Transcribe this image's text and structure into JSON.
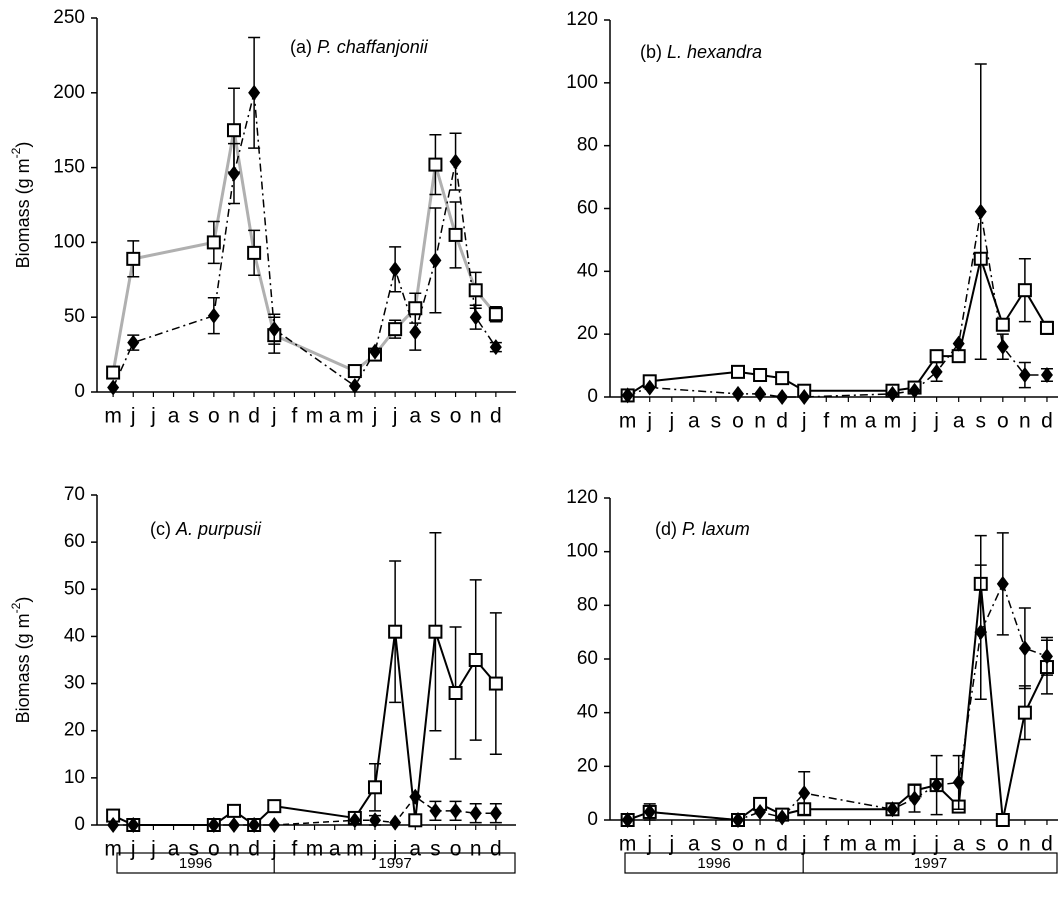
{
  "chart_data": [
    {
      "type": "line",
      "title": [
        "(a) ",
        "P. chaffanjonii"
      ],
      "ylabel": [
        "Biomass  (g m",
        "-2",
        ")"
      ],
      "xlim": [
        -0.8,
        20
      ],
      "ylim": [
        0,
        250
      ],
      "yticks": [
        0,
        50,
        100,
        150,
        200,
        250
      ],
      "xticks": [
        {
          "value": 0,
          "label": "m"
        },
        {
          "value": 1,
          "label": "j"
        },
        {
          "value": 2,
          "label": "j"
        },
        {
          "value": 3,
          "label": "a"
        },
        {
          "value": 4,
          "label": "s"
        },
        {
          "value": 5,
          "label": "o"
        },
        {
          "value": 6,
          "label": "n"
        },
        {
          "value": 7,
          "label": "d"
        },
        {
          "value": 8,
          "label": "j"
        },
        {
          "value": 9,
          "label": "f"
        },
        {
          "value": 10,
          "label": "m"
        },
        {
          "value": 11,
          "label": "a"
        },
        {
          "value": 12,
          "label": "m"
        },
        {
          "value": 13,
          "label": "j"
        },
        {
          "value": 14,
          "label": "j"
        },
        {
          "value": 15,
          "label": "a"
        },
        {
          "value": 16,
          "label": "s"
        },
        {
          "value": 17,
          "label": "o"
        },
        {
          "value": 18,
          "label": "n"
        },
        {
          "value": 19,
          "label": "d"
        }
      ],
      "x": [
        0,
        1,
        5,
        6,
        7,
        8,
        12,
        13,
        14,
        15,
        16,
        17,
        18,
        19
      ],
      "series": [
        {
          "marker": "square",
          "color": "#000000",
          "line_color": "#b0b0b0",
          "line_width": 3,
          "dash": "none",
          "values": [
            13,
            89,
            100,
            175,
            93,
            38,
            14,
            25,
            42,
            56,
            152,
            105,
            68,
            52
          ],
          "errors": [
            null,
            12,
            14,
            28,
            15,
            12,
            null,
            null,
            6,
            10,
            20,
            22,
            12,
            5
          ]
        },
        {
          "marker": "diamond",
          "color": "#000000",
          "line_color": "#000000",
          "line_width": 1.5,
          "dash": "8,4,2,4",
          "values": [
            3,
            33,
            51,
            146,
            200,
            42,
            4,
            27,
            82,
            40,
            88,
            154,
            50,
            30
          ],
          "errors": [
            null,
            5,
            12,
            20,
            37,
            10,
            null,
            null,
            15,
            12,
            35,
            19,
            8,
            3
          ]
        }
      ]
    },
    {
      "type": "line",
      "title": [
        "(b) ",
        "L. hexandra"
      ],
      "xlim": [
        -0.8,
        19.5
      ],
      "ylim": [
        0,
        120
      ],
      "yticks": [
        0,
        20,
        40,
        60,
        80,
        100,
        120
      ],
      "xticks": [
        {
          "value": 0,
          "label": "m"
        },
        {
          "value": 1,
          "label": "j"
        },
        {
          "value": 2,
          "label": "j"
        },
        {
          "value": 3,
          "label": "a"
        },
        {
          "value": 4,
          "label": "s"
        },
        {
          "value": 5,
          "label": "o"
        },
        {
          "value": 6,
          "label": "n"
        },
        {
          "value": 7,
          "label": "d"
        },
        {
          "value": 8,
          "label": "j"
        },
        {
          "value": 9,
          "label": "f"
        },
        {
          "value": 10,
          "label": "m"
        },
        {
          "value": 11,
          "label": "a"
        },
        {
          "value": 12,
          "label": "m"
        },
        {
          "value": 13,
          "label": "j"
        },
        {
          "value": 14,
          "label": "j"
        },
        {
          "value": 15,
          "label": "a"
        },
        {
          "value": 16,
          "label": "s"
        },
        {
          "value": 17,
          "label": "o"
        },
        {
          "value": 18,
          "label": "n"
        },
        {
          "value": 19,
          "label": "d"
        }
      ],
      "x": [
        0,
        1,
        5,
        6,
        7,
        8,
        12,
        13,
        14,
        15,
        16,
        17,
        18,
        19
      ],
      "series": [
        {
          "marker": "square",
          "color": "#000000",
          "line_color": "#000000",
          "line_width": 2,
          "dash": "none",
          "values": [
            0.5,
            5,
            8,
            7,
            6,
            2,
            2,
            3,
            13,
            13,
            44,
            23,
            34,
            22
          ],
          "errors": [
            null,
            null,
            null,
            null,
            null,
            null,
            null,
            null,
            null,
            null,
            null,
            null,
            10,
            2
          ]
        },
        {
          "marker": "diamond",
          "color": "#000000",
          "line_color": "#000000",
          "line_width": 1.5,
          "dash": "8,4,2,4",
          "values": [
            0.5,
            3,
            1,
            1,
            0,
            0,
            1,
            2,
            8,
            17,
            59,
            16,
            7,
            7
          ],
          "errors": [
            null,
            null,
            null,
            null,
            null,
            null,
            null,
            null,
            3,
            null,
            47,
            4,
            4,
            2
          ]
        }
      ]
    },
    {
      "type": "line",
      "title": [
        "(c) ",
        "A. purpusii"
      ],
      "ylabel": [
        "Biomass  (g m",
        "-2",
        ")"
      ],
      "years": [
        "1996",
        "1997"
      ],
      "xlim": [
        -0.8,
        20
      ],
      "ylim": [
        0,
        70
      ],
      "yticks": [
        0,
        10,
        20,
        30,
        40,
        50,
        60,
        70
      ],
      "xticks": [
        {
          "value": 0,
          "label": "m"
        },
        {
          "value": 1,
          "label": "j"
        },
        {
          "value": 2,
          "label": "j"
        },
        {
          "value": 3,
          "label": "a"
        },
        {
          "value": 4,
          "label": "s"
        },
        {
          "value": 5,
          "label": "o"
        },
        {
          "value": 6,
          "label": "n"
        },
        {
          "value": 7,
          "label": "d"
        },
        {
          "value": 8,
          "label": "j"
        },
        {
          "value": 9,
          "label": "f"
        },
        {
          "value": 10,
          "label": "m"
        },
        {
          "value": 11,
          "label": "a"
        },
        {
          "value": 12,
          "label": "m"
        },
        {
          "value": 13,
          "label": "j"
        },
        {
          "value": 14,
          "label": "j"
        },
        {
          "value": 15,
          "label": "a"
        },
        {
          "value": 16,
          "label": "s"
        },
        {
          "value": 17,
          "label": "o"
        },
        {
          "value": 18,
          "label": "n"
        },
        {
          "value": 19,
          "label": "d"
        }
      ],
      "x": [
        0,
        1,
        5,
        6,
        7,
        8,
        12,
        13,
        14,
        15,
        16,
        17,
        18,
        19
      ],
      "series": [
        {
          "marker": "square",
          "color": "#000000",
          "line_color": "#000000",
          "line_width": 2,
          "dash": "none",
          "values": [
            2,
            0,
            0,
            3,
            0,
            4,
            1.5,
            8,
            41,
            1,
            41,
            28,
            35,
            30
          ],
          "errors": [
            null,
            null,
            null,
            null,
            null,
            null,
            null,
            5,
            15,
            null,
            21,
            14,
            17,
            15
          ]
        },
        {
          "marker": "diamond",
          "color": "#000000",
          "line_color": "#000000",
          "line_width": 1.5,
          "dash": "6,4",
          "values": [
            0,
            0,
            0,
            0,
            0,
            0,
            1,
            1,
            0.5,
            6,
            3,
            3,
            2.5,
            2.5
          ],
          "errors": [
            null,
            null,
            null,
            null,
            null,
            null,
            null,
            1,
            null,
            null,
            2,
            2,
            2,
            2
          ]
        }
      ]
    },
    {
      "type": "line",
      "title": [
        "(d) ",
        "P. laxum"
      ],
      "years": [
        "1996",
        "1997"
      ],
      "xlim": [
        -0.8,
        19.5
      ],
      "ylim": [
        0,
        120
      ],
      "yticks": [
        0,
        20,
        40,
        60,
        80,
        100,
        120
      ],
      "xticks": [
        {
          "value": 0,
          "label": "m"
        },
        {
          "value": 1,
          "label": "j"
        },
        {
          "value": 2,
          "label": "j"
        },
        {
          "value": 3,
          "label": "a"
        },
        {
          "value": 4,
          "label": "s"
        },
        {
          "value": 5,
          "label": "o"
        },
        {
          "value": 6,
          "label": "n"
        },
        {
          "value": 7,
          "label": "d"
        },
        {
          "value": 8,
          "label": "j"
        },
        {
          "value": 9,
          "label": "f"
        },
        {
          "value": 10,
          "label": "m"
        },
        {
          "value": 11,
          "label": "a"
        },
        {
          "value": 12,
          "label": "m"
        },
        {
          "value": 13,
          "label": "j"
        },
        {
          "value": 14,
          "label": "j"
        },
        {
          "value": 15,
          "label": "a"
        },
        {
          "value": 16,
          "label": "s"
        },
        {
          "value": 17,
          "label": "o"
        },
        {
          "value": 18,
          "label": "n"
        },
        {
          "value": 19,
          "label": "d"
        }
      ],
      "x": [
        0,
        1,
        5,
        6,
        7,
        8,
        12,
        13,
        14,
        15,
        16,
        17,
        18,
        19
      ],
      "series": [
        {
          "marker": "square",
          "color": "#000000",
          "line_color": "#000000",
          "line_width": 2,
          "dash": "none",
          "values": [
            0,
            3,
            0,
            6,
            2,
            4,
            4,
            11,
            13,
            5,
            88,
            0,
            40,
            57
          ],
          "errors": [
            null,
            null,
            null,
            null,
            null,
            null,
            null,
            null,
            null,
            null,
            18,
            null,
            10,
            10
          ]
        },
        {
          "marker": "diamond",
          "color": "#000000",
          "line_color": "#000000",
          "line_width": 1.5,
          "dash": "8,4,2,4",
          "values": [
            0,
            3,
            0,
            3,
            1,
            10,
            4,
            8,
            13,
            14,
            70,
            88,
            64,
            61
          ],
          "errors": [
            null,
            3,
            null,
            null,
            null,
            8,
            null,
            5,
            11,
            10,
            25,
            19,
            15,
            7
          ]
        }
      ]
    }
  ]
}
